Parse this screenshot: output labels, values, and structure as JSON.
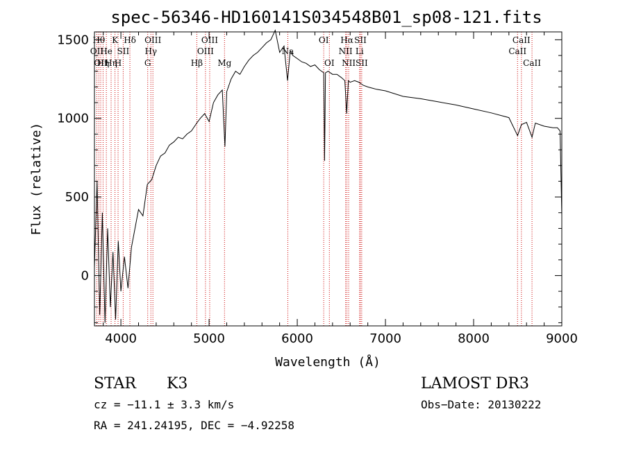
{
  "chart_data": {
    "type": "line",
    "title": "spec-56346-HD160141S034548B01_sp08-121.fits",
    "xlabel": "Wavelength (Å)",
    "ylabel": "Flux (relative)",
    "xlim": [
      3700,
      9000
    ],
    "ylim": [
      -320,
      1550
    ],
    "x_ticks": [
      4000,
      5000,
      6000,
      7000,
      8000,
      9000
    ],
    "y_ticks": [
      0,
      500,
      1000,
      1500
    ],
    "series": [
      {
        "name": "flux",
        "x": [
          3700,
          3730,
          3760,
          3790,
          3820,
          3850,
          3880,
          3910,
          3940,
          3970,
          4000,
          4040,
          4080,
          4120,
          4160,
          4200,
          4250,
          4300,
          4350,
          4400,
          4450,
          4500,
          4550,
          4600,
          4650,
          4700,
          4750,
          4800,
          4860,
          4900,
          4950,
          5000,
          5050,
          5100,
          5150,
          5180,
          5200,
          5250,
          5300,
          5350,
          5400,
          5450,
          5500,
          5550,
          5600,
          5650,
          5700,
          5750,
          5800,
          5850,
          5890,
          5920,
          5950,
          6000,
          6050,
          6100,
          6150,
          6200,
          6250,
          6300,
          6310,
          6320,
          6350,
          6400,
          6450,
          6500,
          6540,
          6560,
          6580,
          6600,
          6650,
          6700,
          6750,
          6800,
          6900,
          7000,
          7200,
          7400,
          7600,
          7800,
          8000,
          8200,
          8400,
          8498,
          8542,
          8600,
          8662,
          8700,
          8800,
          8900,
          8950,
          8980,
          9000
        ],
        "y": [
          50,
          600,
          -250,
          400,
          -300,
          300,
          -200,
          150,
          -280,
          220,
          -100,
          120,
          -80,
          180,
          300,
          420,
          380,
          580,
          610,
          700,
          760,
          780,
          830,
          850,
          880,
          870,
          900,
          920,
          970,
          1000,
          1030,
          980,
          1100,
          1150,
          1180,
          820,
          1170,
          1250,
          1300,
          1280,
          1330,
          1370,
          1400,
          1420,
          1450,
          1480,
          1500,
          1560,
          1420,
          1460,
          1240,
          1430,
          1400,
          1380,
          1360,
          1350,
          1330,
          1340,
          1310,
          1290,
          730,
          1290,
          1300,
          1280,
          1280,
          1260,
          1240,
          1030,
          1240,
          1230,
          1240,
          1230,
          1210,
          1200,
          1185,
          1175,
          1140,
          1125,
          1105,
          1085,
          1060,
          1035,
          1005,
          890,
          960,
          975,
          880,
          970,
          950,
          940,
          940,
          920,
          380
        ]
      }
    ],
    "emission_lines": [
      {
        "x": 3727,
        "label": "OII",
        "row": 2
      },
      {
        "x": 3750,
        "label": "Hθ",
        "row": 1
      },
      {
        "x": 3771,
        "label": "OII",
        "row": 3
      },
      {
        "x": 3798,
        "label": "Hη",
        "row": 3
      },
      {
        "x": 3835,
        "label": "He",
        "row": 2
      },
      {
        "x": 3889,
        "label": "Hη",
        "row": 3
      },
      {
        "x": 3933,
        "label": "K",
        "row": 1
      },
      {
        "x": 3968,
        "label": "H",
        "row": 3
      },
      {
        "x": 4026,
        "label": "SII",
        "row": 2
      },
      {
        "x": 4102,
        "label": "Hδ",
        "row": 1
      },
      {
        "x": 4304,
        "label": "G",
        "row": 3
      },
      {
        "x": 4340,
        "label": "Hγ",
        "row": 2
      },
      {
        "x": 4363,
        "label": "OIII",
        "row": 1
      },
      {
        "x": 4861,
        "label": "Hβ",
        "row": 3
      },
      {
        "x": 4959,
        "label": "OIII",
        "row": 2
      },
      {
        "x": 5007,
        "label": "OIII",
        "row": 1
      },
      {
        "x": 5175,
        "label": "Mg",
        "row": 3
      },
      {
        "x": 5893,
        "label": "Na",
        "row": 2
      },
      {
        "x": 6300,
        "label": "OI",
        "row": 1
      },
      {
        "x": 6364,
        "label": "OI",
        "row": 3
      },
      {
        "x": 6548,
        "label": "NII",
        "row": 2
      },
      {
        "x": 6563,
        "label": "Hα",
        "row": 1
      },
      {
        "x": 6583,
        "label": "NII",
        "row": 3
      },
      {
        "x": 6707,
        "label": "Li",
        "row": 2
      },
      {
        "x": 6716,
        "label": "SII",
        "row": 1
      },
      {
        "x": 6731,
        "label": "SII",
        "row": 3
      },
      {
        "x": 8498,
        "label": "CaII",
        "row": 2
      },
      {
        "x": 8542,
        "label": "CaII",
        "row": 1
      },
      {
        "x": 8662,
        "label": "CaII",
        "row": 3
      }
    ]
  },
  "footer": {
    "object_class": "STAR",
    "subclass": "K3",
    "survey": "LAMOST DR3",
    "cz": "cz = −11.1 ± 3.3 km/s",
    "obs_date": "Obs−Date: 20130222",
    "coords": "RA = 241.24195, DEC =  −4.92258"
  },
  "colors": {
    "spectrum": "#000000",
    "line_markers": "#cc0000",
    "axes": "#000000"
  }
}
